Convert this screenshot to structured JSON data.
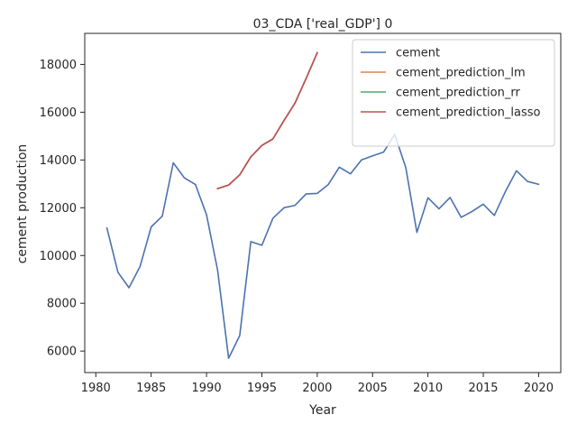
{
  "chart_data": {
    "type": "line",
    "title": "03_CDA ['real_GDP'] 0",
    "xlabel": "Year",
    "ylabel": "cement production",
    "xlim": [
      1979.0,
      2022.0
    ],
    "ylim": [
      5100,
      19300
    ],
    "xticks": [
      1980,
      1985,
      1990,
      1995,
      2000,
      2005,
      2010,
      2015,
      2020
    ],
    "yticks": [
      6000,
      8000,
      10000,
      12000,
      14000,
      16000,
      18000
    ],
    "grid": false,
    "legend_position": "top-right",
    "series": [
      {
        "name": "cement",
        "color": "#4c72b0",
        "x": [
          1981,
          1982,
          1983,
          1984,
          1985,
          1986,
          1987,
          1988,
          1989,
          1990,
          1991,
          1992,
          1993,
          1994,
          1995,
          1996,
          1997,
          1998,
          1999,
          2000,
          2001,
          2002,
          2003,
          2004,
          2005,
          2006,
          2007,
          2008,
          2009,
          2010,
          2011,
          2012,
          2013,
          2014,
          2015,
          2016,
          2017,
          2018,
          2019,
          2020
        ],
        "values": [
          11150,
          9300,
          8650,
          9550,
          11200,
          11650,
          13880,
          13250,
          12970,
          11700,
          9400,
          5700,
          6650,
          10580,
          10430,
          11560,
          12000,
          12100,
          12580,
          12600,
          12970,
          13700,
          13420,
          14000,
          14170,
          14330,
          15070,
          13680,
          10970,
          12420,
          11960,
          12430,
          11600,
          11850,
          12150,
          11680,
          12680,
          13550,
          13100,
          12980
        ]
      },
      {
        "name": "cement_prediction_lm",
        "color": "#dd8452",
        "x": [
          1991,
          1992,
          1993,
          1994,
          1995,
          1996,
          1997,
          1998,
          1999,
          2000
        ],
        "values": [
          12800,
          12950,
          13380,
          14130,
          14610,
          14880,
          15650,
          16390,
          17420,
          18490
        ]
      },
      {
        "name": "cement_prediction_rr",
        "color": "#55a868",
        "x": [
          1991,
          1992,
          1993,
          1994,
          1995,
          1996,
          1997,
          1998,
          1999,
          2000
        ],
        "values": [
          12800,
          12950,
          13380,
          14130,
          14610,
          14880,
          15650,
          16390,
          17420,
          18490
        ]
      },
      {
        "name": "cement_prediction_lasso",
        "color": "#c44e52",
        "x": [
          1991,
          1992,
          1993,
          1994,
          1995,
          1996,
          1997,
          1998,
          1999,
          2000
        ],
        "values": [
          12800,
          12950,
          13380,
          14130,
          14610,
          14880,
          15650,
          16390,
          17420,
          18490
        ]
      }
    ]
  }
}
